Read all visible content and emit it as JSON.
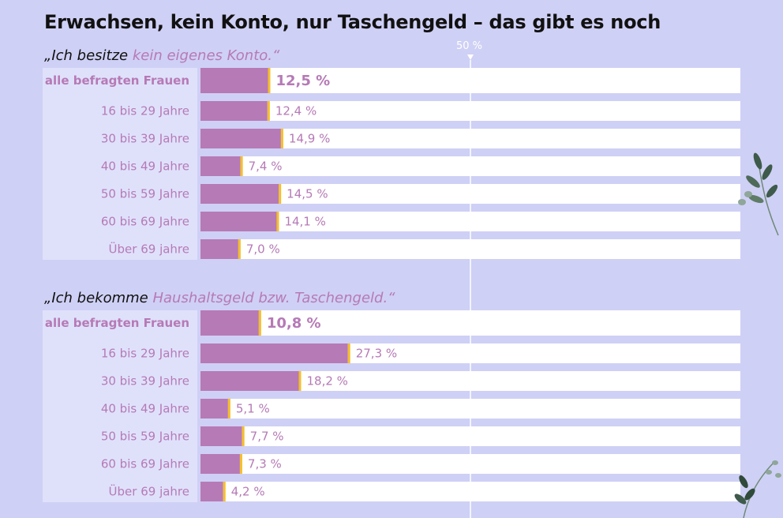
{
  "title": "Erwachsen, kein Konto, nur Taschengeld – das gibt es noch",
  "reference_line_label": "50 %",
  "colors": {
    "bar": "#b67ab6",
    "marker": "#f5bf2a",
    "track": "#ffffff",
    "background": "#cfd0f5",
    "label_panel": "#dfe1fb",
    "text": "#b67ab6"
  },
  "chart_data": [
    {
      "type": "bar",
      "orientation": "horizontal",
      "title_prefix": "„Ich besitze ",
      "title_highlight": "kein eigenes Konto.“",
      "categories": [
        "alle befragten Frauen",
        "16 bis 29 Jahre",
        "30 bis 39 Jahre",
        "40 bis 49 Jahre",
        "50 bis 59 Jahre",
        "60 bis 69 Jahre",
        "Über 69 jahre"
      ],
      "values": [
        12.5,
        12.4,
        14.9,
        7.4,
        14.5,
        14.1,
        7.0
      ],
      "value_labels": [
        "12,5 %",
        "12,4 %",
        "14,9 %",
        "7,4 %",
        "14,5 %",
        "14,1 %",
        "7,0 %"
      ],
      "xlim": [
        0,
        100
      ],
      "unit": "%"
    },
    {
      "type": "bar",
      "orientation": "horizontal",
      "title_prefix": "„Ich bekomme ",
      "title_highlight": "Haushaltsgeld bzw. Taschengeld.“",
      "categories": [
        "alle befragten Frauen",
        "16 bis 29 Jahre",
        "30 bis 39 Jahre",
        "40 bis 49 Jahre",
        "50 bis 59 Jahre",
        "60 bis 69 Jahre",
        "Über 69 jahre"
      ],
      "values": [
        10.8,
        27.3,
        18.2,
        5.1,
        7.7,
        7.3,
        4.2
      ],
      "value_labels": [
        "10,8 %",
        "27,3 %",
        "18,2 %",
        "5,1 %",
        "7,7 %",
        "7,3 %",
        "4,2 %"
      ],
      "xlim": [
        0,
        100
      ],
      "unit": "%"
    }
  ]
}
